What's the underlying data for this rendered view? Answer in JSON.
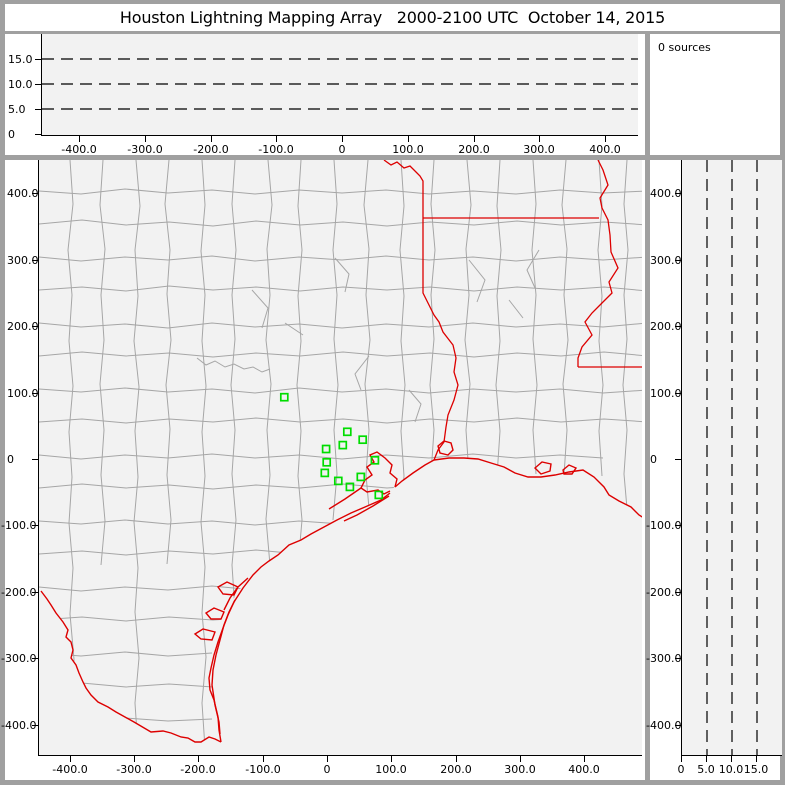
{
  "window": {
    "title": "Houston Lightning Mapping Array   2000-2100 UTC  October 14, 2015"
  },
  "sources_panel": {
    "label": "0 sources",
    "count": 0
  },
  "colors": {
    "frame_gray": "#a0a0a0",
    "panel_white": "#ffffff",
    "plot_background": "#f2f2f2",
    "county_boundary": "#a6a6a6",
    "state_border_red": "#dd0000",
    "station_green": "#00dd00",
    "axis_black": "#000000"
  },
  "chart_data": [
    {
      "panel": "altitude-vs-east-west",
      "type": "scatter",
      "points": [],
      "xlim": [
        -457,
        449
      ],
      "ylim": [
        0,
        20
      ],
      "units": "km",
      "grid": "dashed-horizontal",
      "y_gridlines": [
        5,
        10,
        15
      ],
      "x_ticks": {
        "values": [
          -400,
          -300,
          -200,
          -100,
          0,
          100,
          200,
          300,
          400
        ],
        "labels": [
          "-400.0",
          "-300.0",
          "-200.0",
          "-100.0",
          "0",
          "100.0",
          "200.0",
          "300.0",
          "400.0"
        ]
      },
      "y_ticks": {
        "values": [
          15,
          10,
          5,
          0
        ],
        "labels": [
          "15.0",
          "10.0",
          "5.0",
          "0"
        ]
      }
    },
    {
      "panel": "plan-view-map",
      "type": "map-scatter",
      "points": [],
      "xlim": [
        -449,
        488
      ],
      "ylim": [
        -447,
        450
      ],
      "units": "km",
      "grid": "off",
      "map_features": [
        "county-boundaries",
        "state-borders",
        "rivers",
        "gulf-coastline"
      ],
      "stations_east_north_km": [
        [
          -68,
          93
        ],
        [
          30,
          41
        ],
        [
          54,
          29
        ],
        [
          23,
          21
        ],
        [
          -3,
          15
        ],
        [
          73,
          -2
        ],
        [
          -2,
          -5
        ],
        [
          -5,
          -21
        ],
        [
          51,
          -27
        ],
        [
          16,
          -33
        ],
        [
          34,
          -42
        ],
        [
          79,
          -54
        ]
      ],
      "x_ticks": {
        "values": [
          -400,
          -300,
          -200,
          -100,
          0,
          100,
          200,
          300,
          400
        ],
        "labels": [
          "-400.0",
          "-300.0",
          "-200.0",
          "-100.0",
          "0",
          "100.0",
          "200.0",
          "300.0",
          "400.0"
        ]
      },
      "y_ticks": {
        "values": [
          400,
          300,
          200,
          100,
          0,
          -100,
          -200,
          -300,
          -400
        ],
        "labels": [
          "400.0",
          "300.0",
          "200.0",
          "100.0",
          "0",
          "-100.0",
          "-200.0",
          "-300.0",
          "-400.0"
        ]
      }
    },
    {
      "panel": "altitude-vs-north-south",
      "type": "scatter",
      "points": [],
      "xlim": [
        0,
        20
      ],
      "ylim": [
        -447,
        450
      ],
      "units": "km",
      "grid": "dashed-vertical",
      "x_gridlines": [
        5,
        10,
        15
      ],
      "x_ticks": {
        "values": [
          0,
          5,
          10,
          15
        ],
        "labels": [
          "0",
          "5.0",
          "10.0",
          "15.0"
        ]
      },
      "y_ticks": {
        "values": [
          400,
          300,
          200,
          100,
          0,
          -100,
          -200,
          -300,
          -400
        ],
        "labels": [
          "400.0",
          "300.0",
          "200.0",
          "100.0",
          "0",
          "-100.0",
          "-200.0",
          "-300.0",
          "-400.0"
        ]
      }
    },
    {
      "panel": "source-count",
      "type": "text",
      "label": "0 sources"
    }
  ]
}
